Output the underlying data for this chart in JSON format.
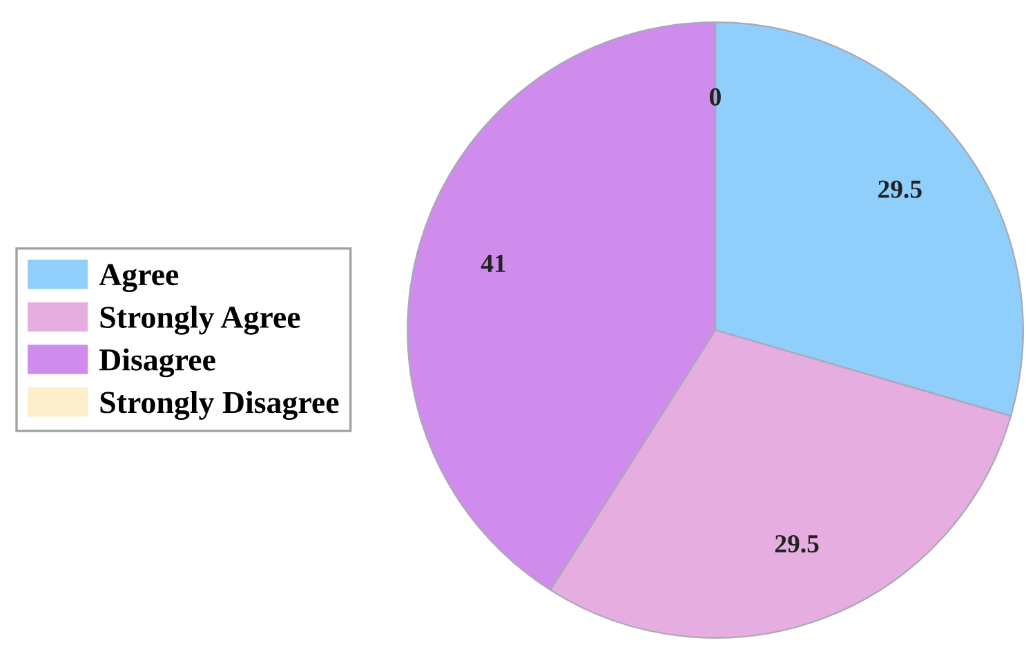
{
  "chart_data": {
    "type": "pie",
    "categories": [
      "Agree",
      "Strongly Agree",
      "Disagree",
      "Strongly Disagree"
    ],
    "values": [
      29.5,
      29.5,
      41,
      0
    ],
    "value_labels": [
      "29.5",
      "29.5",
      "41",
      "0"
    ],
    "colors": [
      "#90cffb",
      "#e6aee0",
      "#d08cec",
      "#fdefcb"
    ],
    "legend": "left"
  }
}
